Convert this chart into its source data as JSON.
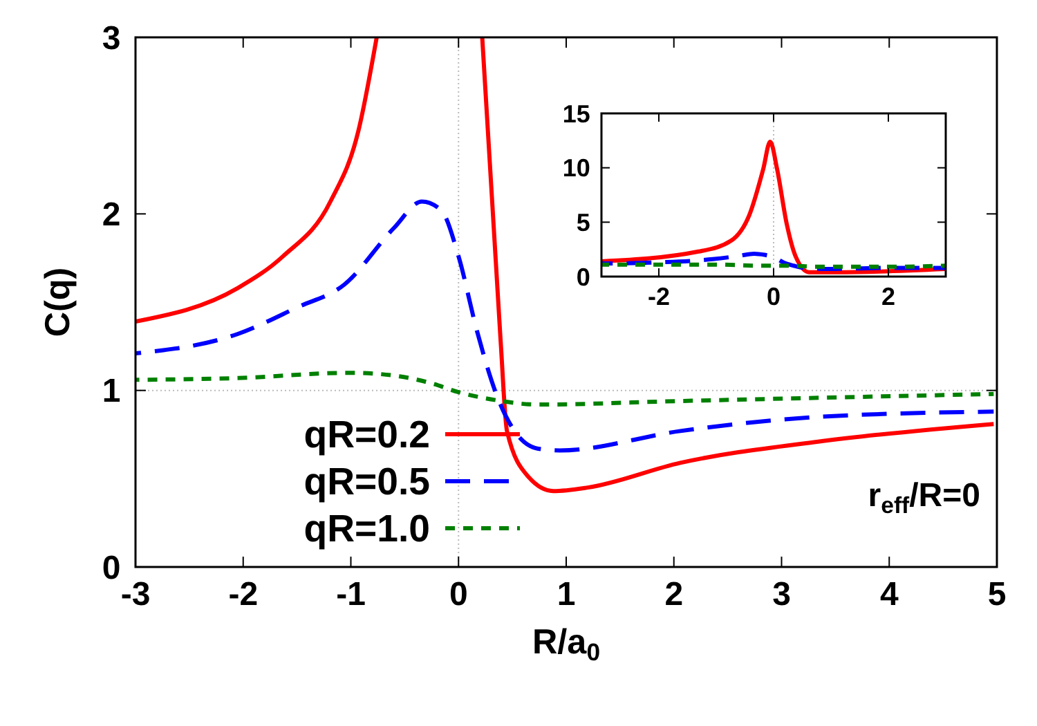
{
  "chart_data": [
    {
      "type": "line",
      "xlabel": "R/a$_{0}$",
      "ylabel": "C(q)",
      "xlim": [
        -3,
        5
      ],
      "ylim": [
        0,
        3
      ],
      "xticks": [
        -3,
        -2,
        -1,
        0,
        1,
        2,
        3,
        4,
        5
      ],
      "yticks": [
        0,
        1,
        2,
        3
      ],
      "grid": false,
      "legend": "bottom left",
      "annotations": [
        "r$_{eff}$/R=0"
      ],
      "ref_lines": [
        {
          "axis": "x",
          "value": 0,
          "color": "#bbbbbb",
          "line_style": "dotted"
        },
        {
          "axis": "y",
          "value": 1,
          "color": "#bbbbbb",
          "line_style": "dotted"
        }
      ],
      "series": [
        {
          "name": "qR=0.2",
          "color": "#ff0000",
          "line_style": "solid",
          "x": [
            -3,
            -2.05,
            -1.63,
            -1.19,
            -0.93,
            -0.76,
            null,
            0.22,
            0.39,
            0.45,
            0.65,
            0.88,
            1.2,
            2.06,
            3.34,
            4.97
          ],
          "values": [
            1.39,
            1.58,
            1.76,
            2.07,
            2.47,
            3,
            null,
            3,
            1.29,
            0.77,
            0.51,
            0.43,
            0.45,
            0.59,
            0.71,
            0.81
          ]
        },
        {
          "name": "qR=0.5",
          "color": "#0000ff",
          "line_style": "dashed",
          "x": [
            -3,
            -2.05,
            -1.5,
            -1.06,
            -0.6,
            -0.34,
            -0.16,
            0,
            0.17,
            0.35,
            0.52,
            0.74,
            0.94,
            2.06,
            3.34,
            4.97
          ],
          "values": [
            1.21,
            1.32,
            1.47,
            1.6,
            1.92,
            2.07,
            2.02,
            1.76,
            1.34,
            0.98,
            0.77,
            0.67,
            0.66,
            0.77,
            0.85,
            0.88
          ]
        },
        {
          "name": "qR=1.0",
          "color": "#008000",
          "line_style": "dotted",
          "x": [
            -3,
            -2.05,
            -1,
            -0.55,
            -0.25,
            0,
            0.3,
            0.74,
            2.06,
            4.97
          ],
          "values": [
            1.06,
            1.07,
            1.1,
            1.08,
            1.04,
            0.99,
            0.95,
            0.92,
            0.94,
            0.98
          ]
        }
      ]
    },
    {
      "type": "line",
      "xlim": [
        -3,
        3
      ],
      "ylim": [
        0,
        15
      ],
      "xticks": [
        -2,
        0,
        2
      ],
      "yticks": [
        0,
        5,
        10,
        15
      ],
      "grid": false,
      "legend": false,
      "ref_lines": [
        {
          "axis": "x",
          "value": 0,
          "color": "#bbbbbb",
          "line_style": "dotted"
        }
      ],
      "series": [
        {
          "color": "#ff0000",
          "line_style": "solid",
          "x": [
            -3,
            -1.31,
            -0.74,
            -0.42,
            -0.18,
            -0.06,
            0.06,
            0.23,
            0.38,
            0.62,
            1.1,
            3
          ],
          "values": [
            1.4,
            2.3,
            3.3,
            5.7,
            9.9,
            12.4,
            9.9,
            4.8,
            1.9,
            0.4,
            0.4,
            0.7
          ]
        },
        {
          "color": "#0000ff",
          "line_style": "dashed",
          "x": [
            -3,
            -2.05,
            -1.06,
            -0.6,
            -0.34,
            -0.16,
            0,
            0.17,
            0.35,
            0.52,
            0.94,
            2.06,
            3
          ],
          "values": [
            1.2,
            1.3,
            1.6,
            1.9,
            2.1,
            2,
            1.8,
            1.3,
            1,
            0.8,
            0.7,
            0.8,
            0.8
          ]
        },
        {
          "color": "#008000",
          "line_style": "dotted",
          "x": [
            -3,
            -1,
            -0.25,
            0,
            0.3,
            0.74,
            2.06,
            3
          ],
          "values": [
            1.1,
            1.1,
            1,
            1,
            1,
            0.9,
            0.9,
            1
          ]
        }
      ]
    }
  ]
}
